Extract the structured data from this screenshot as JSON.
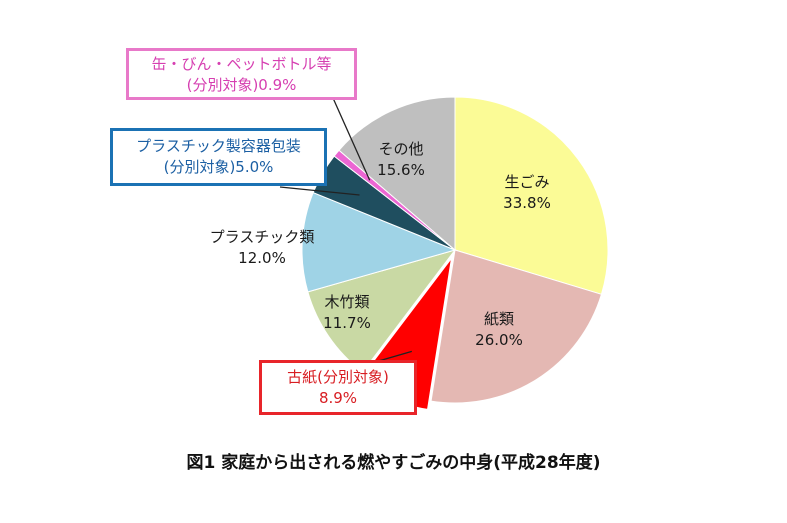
{
  "caption": "図1 家庭から出される燃やすごみの中身(平成28年度)",
  "chart_data": {
    "type": "pie",
    "slices": [
      {
        "name": "生ごみ",
        "value": 33.8,
        "label": "33.8%",
        "color": "#fbfb96"
      },
      {
        "name": "紙類",
        "value": 26.0,
        "label": "26.0%",
        "color": "#e4b8b3"
      },
      {
        "name": "古紙(分別対象)",
        "value": 8.9,
        "label": "8.9%",
        "color": "#ff0000",
        "callout": true
      },
      {
        "name": "木竹類",
        "value": 11.7,
        "label": "11.7%",
        "color": "#c9d9a4"
      },
      {
        "name": "プラスチック類",
        "value": 12.0,
        "label": "12.0%",
        "color": "#9fd3e6"
      },
      {
        "name": "プラスチック製容器包装(分別対象)",
        "value": 5.0,
        "label": "5.0%",
        "color": "#1f4e5f",
        "callout": true
      },
      {
        "name": "缶・びん・ペットボトル等(分別対象)",
        "value": 0.9,
        "label": "0.9%",
        "color": "#ec66d3",
        "callout": true
      },
      {
        "name": "その他",
        "value": 15.6,
        "label": "15.6%",
        "color": "#bfbfbf"
      }
    ]
  },
  "callouts": {
    "can": {
      "line1": "缶・びん・ペットボトル等",
      "line2": "(分別対象)0.9%",
      "color": "#e879c9"
    },
    "plastic_pack": {
      "line1": "プラスチック製容器包装",
      "line2": "(分別対象)5.0%",
      "color": "#1b72b4"
    },
    "old_paper": {
      "line1": "古紙(分別対象)",
      "line2": "8.9%",
      "color": "#e8252a"
    }
  }
}
